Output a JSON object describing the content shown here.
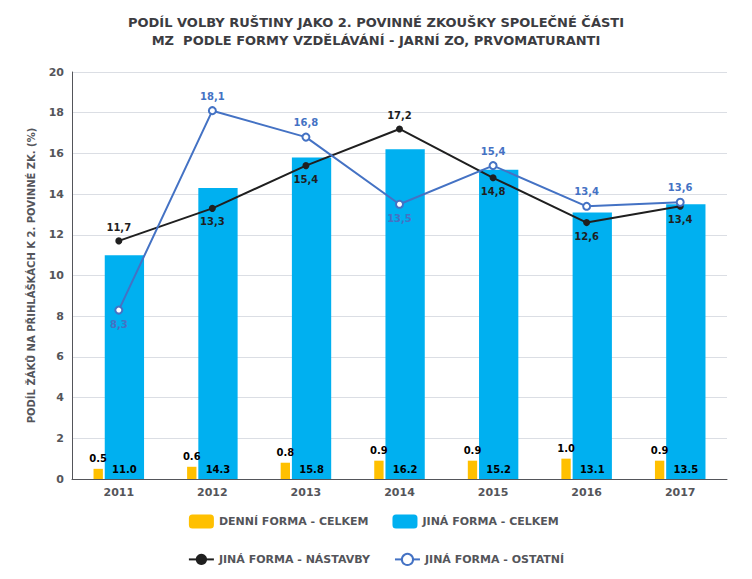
{
  "chart_data": {
    "type": "bar",
    "title": "PODÍL VOLBY RUŠTINY JAKO 2. POVINNÉ ZKOUŠKY SPOLEČNÉ ČÁSTI\nMZ  PODLE FORMY VZDĚLÁVÁNÍ - JARNÍ ZO, PRVOMATURANTI",
    "y_label": "PODÍL ŽÁKŮ NA PŘIHLÁŠKÁCH K 2. POVINNÉ ZK. (%)",
    "categories": [
      "2011",
      "2012",
      "2013",
      "2014",
      "2015",
      "2016",
      "2017"
    ],
    "series": [
      {
        "name": "DENNÍ FORMA - CELKEM",
        "type": "bar",
        "color": "#FFC000",
        "values": [
          0.5,
          0.6,
          0.8,
          0.9,
          0.9,
          1.0,
          0.9
        ],
        "value_labels": [
          "0.5",
          "0.6",
          "0.8",
          "0.9",
          "0.9",
          "1.0",
          "0.9"
        ]
      },
      {
        "name": "JINÁ FORMA - CELKEM",
        "type": "bar",
        "color": "#00B0F0",
        "values": [
          11.0,
          14.3,
          15.8,
          16.2,
          15.2,
          13.1,
          13.5
        ],
        "value_labels": [
          "11.0",
          "14.3",
          "15.8",
          "16.2",
          "15.2",
          "13.1",
          "13.5"
        ]
      },
      {
        "name": "JINÁ FORMA - NÁSTAVBY",
        "type": "line",
        "color": "#1F1F1F",
        "marker": "circle",
        "values": [
          11.7,
          13.3,
          15.4,
          17.2,
          14.8,
          12.6,
          13.4
        ],
        "value_labels": [
          "11,7",
          "13,3",
          "15,4",
          "17,2",
          "14,8",
          "12,6",
          "13,4"
        ]
      },
      {
        "name": "JINÁ FORMA - OSTATNÍ",
        "type": "line",
        "color": "#4472C4",
        "marker": "open_circle",
        "values": [
          8.3,
          18.1,
          16.8,
          13.5,
          15.4,
          13.4,
          13.6
        ],
        "value_labels": [
          "8,3",
          "18,1",
          "16,8",
          "13,5",
          "15,4",
          "13,4",
          "13,6"
        ]
      }
    ],
    "ylim": [
      0,
      20
    ],
    "yticks": [
      0,
      2,
      4,
      6,
      8,
      10,
      12,
      14,
      16,
      18,
      20
    ],
    "grid": true,
    "legend": "bottom",
    "data_labels": true
  }
}
